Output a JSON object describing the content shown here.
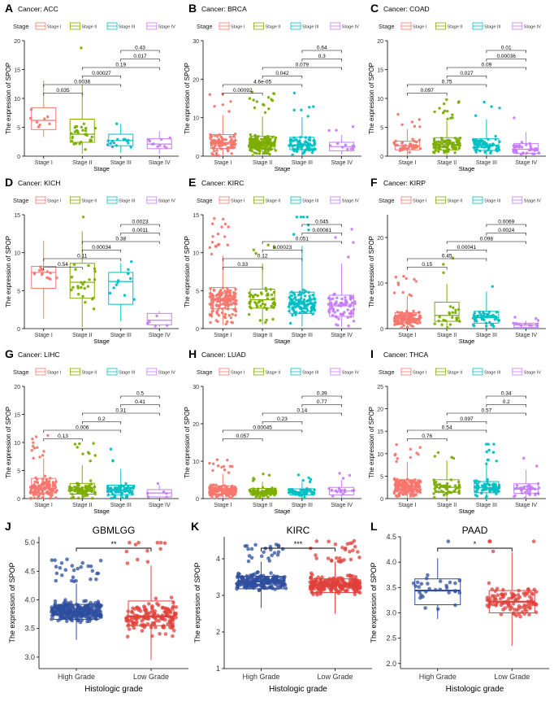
{
  "figure": {
    "stage_legend_title": "Stage",
    "stage_xlabel": "Stage",
    "stage_ylabel": "The expression of SPOP",
    "stage_levels": [
      "Stage I",
      "Stage II",
      "Stage III",
      "Stage IV"
    ],
    "stage_colors": [
      "#F8766D",
      "#7CAE00",
      "#00BFC4",
      "#C77CFF"
    ],
    "grade_xlabel": "Histologic grade",
    "grade_ylabel": "The expression of SPOP",
    "grade_levels": [
      "High Grade",
      "Low Grade"
    ],
    "grade_colors": [
      "#2E4E9E",
      "#E0403A"
    ]
  },
  "chart_data": [
    {
      "type": "box",
      "panel": "A",
      "title": "Cancer: ACC",
      "ylim": [
        0,
        20
      ],
      "yticks": [
        0,
        5,
        10,
        15,
        20
      ],
      "medians": [
        6.2,
        3.8,
        2.7,
        2.1
      ],
      "q1": [
        4.6,
        2.4,
        1.8,
        1.3
      ],
      "q3": [
        8.4,
        6.4,
        3.8,
        3.0
      ],
      "whisker_low": [
        3.3,
        0.4,
        0.6,
        0.4
      ],
      "whisker_high": [
        13.1,
        12.4,
        5.6,
        4.3
      ],
      "point_counts": [
        8,
        30,
        15,
        10
      ],
      "comparisons": [
        {
          "pair": [
            1,
            2
          ],
          "label": "0.035"
        },
        {
          "pair": [
            1,
            3
          ],
          "label": "0.0036"
        },
        {
          "pair": [
            2,
            3
          ],
          "label": "0.00027"
        },
        {
          "pair": [
            2,
            4
          ],
          "label": "0.19"
        },
        {
          "pair": [
            3,
            4
          ],
          "label": "0.017"
        },
        {
          "pair": [
            3,
            4
          ],
          "label": "0.43"
        }
      ]
    },
    {
      "type": "box",
      "panel": "B",
      "title": "Cancer: BRCA",
      "ylim": [
        0,
        30
      ],
      "yticks": [
        0,
        10,
        20,
        30
      ],
      "medians": [
        3.5,
        3.2,
        2.9,
        2.5
      ],
      "q1": [
        2.0,
        1.9,
        1.7,
        1.4
      ],
      "q3": [
        5.6,
        5.2,
        4.9,
        3.6
      ],
      "whisker_low": [
        0,
        0,
        0,
        0.5
      ],
      "whisker_high": [
        10.7,
        10.3,
        10.1,
        5.5
      ],
      "point_counts": [
        90,
        180,
        80,
        12
      ],
      "comparisons": [
        {
          "pair": [
            1,
            2
          ],
          "label": "0.00092"
        },
        {
          "pair": [
            1,
            3
          ],
          "label": "4.6e-05"
        },
        {
          "pair": [
            2,
            3
          ],
          "label": "0.042"
        },
        {
          "pair": [
            2,
            4
          ],
          "label": "0.079"
        },
        {
          "pair": [
            3,
            4
          ],
          "label": "0.3"
        },
        {
          "pair": [
            3,
            4
          ],
          "label": "0.64"
        }
      ]
    },
    {
      "type": "box",
      "panel": "C",
      "title": "Cancer: COAD",
      "ylim": [
        0,
        20
      ],
      "yticks": [
        0,
        5,
        10,
        15,
        20
      ],
      "medians": [
        1.8,
        2.0,
        1.9,
        1.2
      ],
      "q1": [
        1.1,
        1.1,
        1.0,
        0.5
      ],
      "q3": [
        2.6,
        3.2,
        3.0,
        2.2
      ],
      "whisker_low": [
        0,
        0,
        0,
        0
      ],
      "whisker_high": [
        4.7,
        6.1,
        6.4,
        4.2
      ],
      "point_counts": [
        45,
        100,
        70,
        40
      ],
      "comparisons": [
        {
          "pair": [
            1,
            2
          ],
          "label": "0.097"
        },
        {
          "pair": [
            1,
            3
          ],
          "label": "0.75"
        },
        {
          "pair": [
            2,
            3
          ],
          "label": "0.027"
        },
        {
          "pair": [
            2,
            4
          ],
          "label": "0.09"
        },
        {
          "pair": [
            3,
            4
          ],
          "label": "0.00036"
        },
        {
          "pair": [
            3,
            4
          ],
          "label": "0.01"
        }
      ]
    },
    {
      "type": "box",
      "panel": "D",
      "title": "Cancer: KICH",
      "ylim": [
        0,
        15
      ],
      "yticks": [
        0,
        5,
        10,
        15
      ],
      "medians": [
        7.4,
        6.1,
        6.2,
        1.1
      ],
      "q1": [
        5.3,
        4.0,
        3.2,
        0.5
      ],
      "q3": [
        8.2,
        8.6,
        7.4,
        2.0
      ],
      "whisker_low": [
        1.3,
        0.2,
        1.0,
        0.2
      ],
      "whisker_high": [
        11.6,
        12.8,
        8.6,
        2.3
      ],
      "point_counts": [
        15,
        25,
        12,
        5
      ],
      "comparisons": [
        {
          "pair": [
            1,
            2
          ],
          "label": "0.54"
        },
        {
          "pair": [
            1,
            3
          ],
          "label": "0.11"
        },
        {
          "pair": [
            2,
            3
          ],
          "label": "0.00034"
        },
        {
          "pair": [
            2,
            4
          ],
          "label": "0.38"
        },
        {
          "pair": [
            3,
            4
          ],
          "label": "0.0011"
        },
        {
          "pair": [
            3,
            4
          ],
          "label": "0.0023"
        }
      ]
    },
    {
      "type": "box",
      "panel": "E",
      "title": "Cancer: KIRC",
      "ylim": [
        0,
        15
      ],
      "yticks": [
        0,
        5,
        10,
        15
      ],
      "medians": [
        3.8,
        3.8,
        3.2,
        3.0
      ],
      "q1": [
        2.6,
        2.7,
        2.0,
        1.6
      ],
      "q3": [
        5.4,
        5.2,
        4.8,
        4.4
      ],
      "whisker_low": [
        0.5,
        0.5,
        0.3,
        0.2
      ],
      "whisker_high": [
        9.6,
        8.6,
        10.9,
        8.6
      ],
      "point_counts": [
        160,
        55,
        120,
        80
      ],
      "comparisons": [
        {
          "pair": [
            1,
            2
          ],
          "label": "0.33"
        },
        {
          "pair": [
            1,
            3
          ],
          "label": "0.12"
        },
        {
          "pair": [
            2,
            3
          ],
          "label": "0.00023"
        },
        {
          "pair": [
            2,
            4
          ],
          "label": "0.051"
        },
        {
          "pair": [
            3,
            4
          ],
          "label": "0.00081"
        },
        {
          "pair": [
            3,
            4
          ],
          "label": "0.045"
        }
      ]
    },
    {
      "type": "box",
      "panel": "F",
      "title": "Cancer: KIRP",
      "ylim": [
        0,
        25
      ],
      "yticks": [
        0,
        10,
        20
      ],
      "medians": [
        2.2,
        2.9,
        2.4,
        0.8
      ],
      "q1": [
        1.3,
        1.6,
        1.2,
        0.3
      ],
      "q3": [
        3.5,
        5.8,
        3.8,
        1.2
      ],
      "whisker_low": [
        0,
        0.4,
        0,
        0
      ],
      "whisker_high": [
        7.2,
        9.8,
        8.1,
        1.8
      ],
      "point_counts": [
        130,
        25,
        50,
        12
      ],
      "comparisons": [
        {
          "pair": [
            1,
            2
          ],
          "label": "0.15"
        },
        {
          "pair": [
            1,
            3
          ],
          "label": "0.45"
        },
        {
          "pair": [
            2,
            3
          ],
          "label": "0.00041"
        },
        {
          "pair": [
            2,
            4
          ],
          "label": "0.098"
        },
        {
          "pair": [
            3,
            4
          ],
          "label": "0.0024"
        },
        {
          "pair": [
            3,
            4
          ],
          "label": "0.0069"
        }
      ]
    },
    {
      "type": "box",
      "panel": "G",
      "title": "Cancer: LIHC",
      "ylim": [
        0,
        20
      ],
      "yticks": [
        0,
        5,
        10,
        15,
        20
      ],
      "medians": [
        1.8,
        1.5,
        1.4,
        1.0
      ],
      "q1": [
        1.0,
        0.8,
        0.7,
        0.3
      ],
      "q3": [
        3.6,
        2.7,
        2.4,
        1.6
      ],
      "whisker_low": [
        0,
        0,
        0,
        0
      ],
      "whisker_high": [
        7.2,
        6.0,
        5.3,
        2.4
      ],
      "point_counts": [
        150,
        85,
        75,
        6
      ],
      "comparisons": [
        {
          "pair": [
            1,
            2
          ],
          "label": "0.13"
        },
        {
          "pair": [
            1,
            3
          ],
          "label": "0.006"
        },
        {
          "pair": [
            2,
            3
          ],
          "label": "0.2"
        },
        {
          "pair": [
            2,
            4
          ],
          "label": "0.31"
        },
        {
          "pair": [
            3,
            4
          ],
          "label": "0.41"
        },
        {
          "pair": [
            3,
            4
          ],
          "label": "0.5"
        }
      ]
    },
    {
      "type": "box",
      "panel": "H",
      "title": "Cancer: LUAD",
      "ylim": [
        0,
        30
      ],
      "yticks": [
        0,
        10,
        20,
        30
      ],
      "medians": [
        2.2,
        1.9,
        1.8,
        2.0
      ],
      "q1": [
        1.2,
        1.1,
        1.0,
        1.0
      ],
      "q3": [
        3.4,
        2.7,
        2.6,
        3.0
      ],
      "whisker_low": [
        0,
        0,
        0,
        0.2
      ],
      "whisker_high": [
        6.6,
        4.5,
        4.4,
        5.0
      ],
      "point_counts": [
        170,
        90,
        60,
        18
      ],
      "comparisons": [
        {
          "pair": [
            1,
            2
          ],
          "label": "0.057"
        },
        {
          "pair": [
            1,
            3
          ],
          "label": "0.00045"
        },
        {
          "pair": [
            2,
            3
          ],
          "label": "0.23"
        },
        {
          "pair": [
            2,
            4
          ],
          "label": "0.14"
        },
        {
          "pair": [
            3,
            4
          ],
          "label": "0.77"
        },
        {
          "pair": [
            3,
            4
          ],
          "label": "0.39"
        }
      ]
    },
    {
      "type": "box",
      "panel": "I",
      "title": "Cancer: THCA",
      "ylim": [
        0,
        25
      ],
      "yticks": [
        0,
        5,
        10,
        15,
        20,
        25
      ],
      "medians": [
        2.8,
        2.5,
        2.4,
        2.1
      ],
      "q1": [
        1.5,
        1.4,
        1.3,
        1.2
      ],
      "q3": [
        4.2,
        4.2,
        3.8,
        3.3
      ],
      "whisker_low": [
        0,
        0,
        0,
        0
      ],
      "whisker_high": [
        8.2,
        8.5,
        7.6,
        6.4
      ],
      "point_counts": [
        180,
        55,
        90,
        40
      ],
      "comparisons": [
        {
          "pair": [
            1,
            2
          ],
          "label": "0.76"
        },
        {
          "pair": [
            1,
            3
          ],
          "label": "0.54"
        },
        {
          "pair": [
            2,
            3
          ],
          "label": "0.097"
        },
        {
          "pair": [
            2,
            4
          ],
          "label": "0.57"
        },
        {
          "pair": [
            3,
            4
          ],
          "label": "0.2"
        },
        {
          "pair": [
            3,
            4
          ],
          "label": "0.34"
        }
      ]
    },
    {
      "type": "box",
      "panel": "J",
      "title": "GBMLGG",
      "ylim": [
        2.8,
        5.1
      ],
      "yticks": [
        3.0,
        3.5,
        4.0,
        4.5,
        5.0
      ],
      "medians": [
        3.8,
        3.71
      ],
      "q1": [
        3.66,
        3.55
      ],
      "q3": [
        3.92,
        3.98
      ],
      "whisker_low": [
        3.3,
        2.95
      ],
      "whisker_high": [
        4.28,
        4.6
      ],
      "point_counts": [
        320,
        160
      ],
      "significance": "**"
    },
    {
      "type": "box",
      "panel": "K",
      "title": "KIRC",
      "ylim": [
        1,
        4.6
      ],
      "yticks": [
        1,
        2,
        3,
        4
      ],
      "medians": [
        3.38,
        3.28
      ],
      "q1": [
        3.18,
        3.08
      ],
      "q3": [
        3.52,
        3.45
      ],
      "whisker_low": [
        2.66,
        2.5
      ],
      "whisker_high": [
        3.92,
        3.92
      ],
      "point_counts": [
        220,
        260
      ],
      "significance": "***"
    },
    {
      "type": "box",
      "panel": "L",
      "title": "PAAD",
      "ylim": [
        1.9,
        4.5
      ],
      "yticks": [
        2.0,
        2.5,
        3.0,
        3.5,
        4.0,
        4.5
      ],
      "medians": [
        3.44,
        3.22
      ],
      "q1": [
        3.16,
        3.0
      ],
      "q3": [
        3.67,
        3.44
      ],
      "whisker_low": [
        2.88,
        2.35
      ],
      "whisker_high": [
        4.08,
        4.2
      ],
      "point_counts": [
        30,
        110
      ],
      "significance": "*"
    }
  ]
}
